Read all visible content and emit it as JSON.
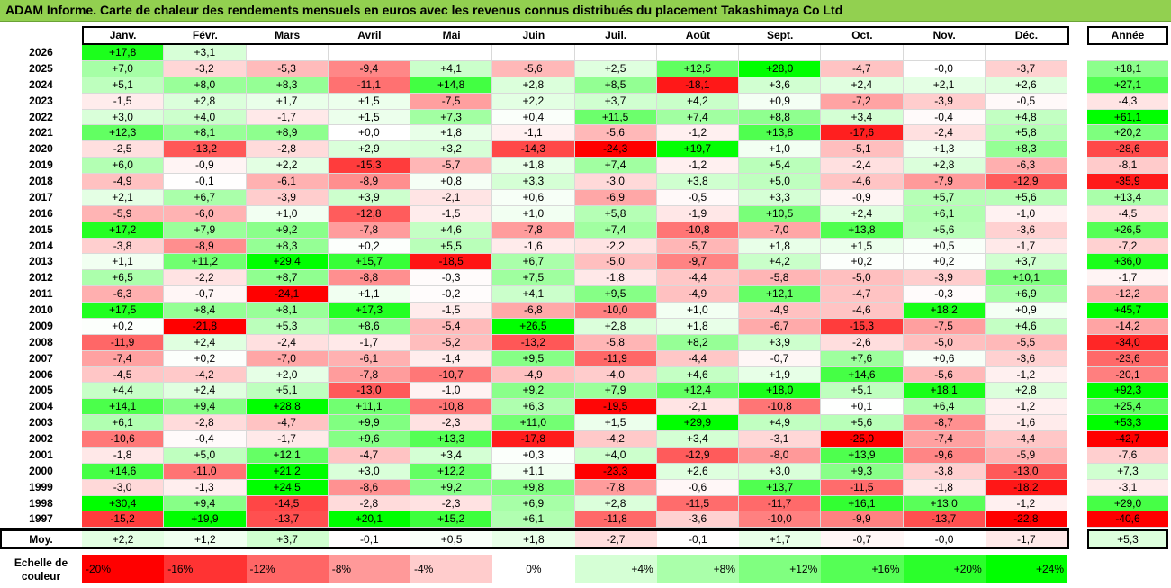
{
  "title": "ADAM Informe. Carte de chaleur des rendements mensuels en euros avec les revenus connus distribués du placement Takashimaya Co Ltd",
  "chart_data": {
    "type": "heatmap",
    "months": [
      "Janv.",
      "Févr.",
      "Mars",
      "Avril",
      "Mai",
      "Juin",
      "Juil.",
      "Août",
      "Sept.",
      "Oct.",
      "Nov.",
      "Déc."
    ],
    "year_label": "Année",
    "rows": [
      {
        "year": "2026",
        "values": [
          "+17,8",
          "+3,1",
          null,
          null,
          null,
          null,
          null,
          null,
          null,
          null,
          null,
          null
        ],
        "annual": null
      },
      {
        "year": "2025",
        "values": [
          "+7,0",
          "-3,2",
          "-5,3",
          "-9,4",
          "+4,1",
          "-5,6",
          "+2,5",
          "+12,5",
          "+28,0",
          "-4,7",
          "-0,0",
          "-3,7"
        ],
        "annual": "+18,1"
      },
      {
        "year": "2024",
        "values": [
          "+5,1",
          "+8,0",
          "+8,3",
          "-11,1",
          "+14,8",
          "+2,8",
          "+8,5",
          "-18,1",
          "+3,6",
          "+2,4",
          "+2,1",
          "+2,6"
        ],
        "annual": "+27,1"
      },
      {
        "year": "2023",
        "values": [
          "-1,5",
          "+2,8",
          "+1,7",
          "+1,5",
          "-7,5",
          "+2,2",
          "+3,7",
          "+4,2",
          "+0,9",
          "-7,2",
          "-3,9",
          "-0,5"
        ],
        "annual": "-4,3"
      },
      {
        "year": "2022",
        "values": [
          "+3,0",
          "+4,0",
          "-1,7",
          "+1,5",
          "+7,3",
          "+0,4",
          "+11,5",
          "+7,4",
          "+8,8",
          "+3,4",
          "-0,4",
          "+4,8"
        ],
        "annual": "+61,1"
      },
      {
        "year": "2021",
        "values": [
          "+12,3",
          "+8,1",
          "+8,9",
          "+0,0",
          "+1,8",
          "-1,1",
          "-5,6",
          "-1,2",
          "+13,8",
          "-17,6",
          "-2,4",
          "+5,8"
        ],
        "annual": "+20,2"
      },
      {
        "year": "2020",
        "values": [
          "-2,5",
          "-13,2",
          "-2,8",
          "+2,9",
          "+3,2",
          "-14,3",
          "-24,3",
          "+19,7",
          "+1,0",
          "-5,1",
          "+1,3",
          "+8,3"
        ],
        "annual": "-28,6"
      },
      {
        "year": "2019",
        "values": [
          "+6,0",
          "-0,9",
          "+2,2",
          "-15,3",
          "-5,7",
          "+1,8",
          "+7,4",
          "-1,2",
          "+5,4",
          "-2,4",
          "+2,8",
          "-6,3"
        ],
        "annual": "-8,1"
      },
      {
        "year": "2018",
        "values": [
          "-4,9",
          "-0,1",
          "-6,1",
          "-8,9",
          "+0,8",
          "+3,3",
          "-3,0",
          "+3,8",
          "+5,0",
          "-4,6",
          "-7,9",
          "-12,9"
        ],
        "annual": "-35,9"
      },
      {
        "year": "2017",
        "values": [
          "+2,1",
          "+6,7",
          "-3,9",
          "+3,9",
          "-2,1",
          "+0,6",
          "-6,9",
          "-0,5",
          "+3,3",
          "-0,9",
          "+5,7",
          "+5,6"
        ],
        "annual": "+13,4"
      },
      {
        "year": "2016",
        "values": [
          "-5,9",
          "-6,0",
          "+1,0",
          "-12,8",
          "-1,5",
          "+1,0",
          "+5,8",
          "-1,9",
          "+10,5",
          "+2,4",
          "+6,1",
          "-1,0"
        ],
        "annual": "-4,5"
      },
      {
        "year": "2015",
        "values": [
          "+17,2",
          "+7,9",
          "+9,2",
          "-7,8",
          "+4,6",
          "-7,8",
          "+7,4",
          "-10,8",
          "-7,0",
          "+13,8",
          "+5,6",
          "-3,6"
        ],
        "annual": "+26,5"
      },
      {
        "year": "2014",
        "values": [
          "-3,8",
          "-8,9",
          "+8,3",
          "+0,2",
          "+5,5",
          "-1,6",
          "-2,2",
          "-5,7",
          "+1,8",
          "+1,5",
          "+0,5",
          "-1,7"
        ],
        "annual": "-7,2"
      },
      {
        "year": "2013",
        "values": [
          "+1,1",
          "+11,2",
          "+29,4",
          "+15,7",
          "-18,5",
          "+6,7",
          "-5,0",
          "-9,7",
          "+4,2",
          "+0,2",
          "+0,2",
          "+3,7"
        ],
        "annual": "+36,0"
      },
      {
        "year": "2012",
        "values": [
          "+6,5",
          "-2,2",
          "+8,7",
          "-8,8",
          "-0,3",
          "+7,5",
          "-1,8",
          "-4,4",
          "-5,8",
          "-5,0",
          "-3,9",
          "+10,1"
        ],
        "annual": "-1,7"
      },
      {
        "year": "2011",
        "values": [
          "-6,3",
          "-0,7",
          "-24,1",
          "+1,1",
          "-0,2",
          "+4,1",
          "+9,5",
          "-4,9",
          "+12,1",
          "-4,7",
          "-0,3",
          "+6,9"
        ],
        "annual": "-12,2"
      },
      {
        "year": "2010",
        "values": [
          "+17,5",
          "+8,4",
          "+8,1",
          "+17,3",
          "-1,5",
          "-6,8",
          "-10,0",
          "+1,0",
          "-4,9",
          "-4,6",
          "+18,2",
          "+0,9"
        ],
        "annual": "+45,7"
      },
      {
        "year": "2009",
        "values": [
          "+0,2",
          "-21,8",
          "+5,3",
          "+8,6",
          "-5,4",
          "+26,5",
          "+2,8",
          "+1,8",
          "-6,7",
          "-15,3",
          "-7,5",
          "+4,6"
        ],
        "annual": "-14,2"
      },
      {
        "year": "2008",
        "values": [
          "-11,9",
          "+2,4",
          "-2,4",
          "-1,7",
          "-5,2",
          "-13,2",
          "-5,8",
          "+8,2",
          "+3,9",
          "-2,6",
          "-5,0",
          "-5,5"
        ],
        "annual": "-34,0"
      },
      {
        "year": "2007",
        "values": [
          "-7,4",
          "+0,2",
          "-7,0",
          "-6,1",
          "-1,4",
          "+9,5",
          "-11,9",
          "-4,4",
          "-0,7",
          "+7,6",
          "+0,6",
          "-3,6"
        ],
        "annual": "-23,6"
      },
      {
        "year": "2006",
        "values": [
          "-4,5",
          "-4,2",
          "+2,0",
          "-7,8",
          "-10,7",
          "-4,9",
          "-4,0",
          "+4,6",
          "+1,9",
          "+14,6",
          "-5,6",
          "-1,2"
        ],
        "annual": "-20,1"
      },
      {
        "year": "2005",
        "values": [
          "+4,4",
          "+2,4",
          "+5,1",
          "-13,0",
          "-1,0",
          "+9,2",
          "+7,9",
          "+12,4",
          "+18,0",
          "+5,1",
          "+18,1",
          "+2,8"
        ],
        "annual": "+92,3"
      },
      {
        "year": "2004",
        "values": [
          "+14,1",
          "+9,4",
          "+28,8",
          "+11,1",
          "-10,8",
          "+6,3",
          "-19,5",
          "-2,1",
          "-10,8",
          "+0,1",
          "+6,4",
          "-1,2"
        ],
        "annual": "+25,4"
      },
      {
        "year": "2003",
        "values": [
          "+6,1",
          "-2,8",
          "-4,7",
          "+9,9",
          "-2,3",
          "+11,0",
          "+1,5",
          "+29,9",
          "+4,9",
          "+5,6",
          "-8,7",
          "-1,6"
        ],
        "annual": "+53,3"
      },
      {
        "year": "2002",
        "values": [
          "-10,6",
          "-0,4",
          "-1,7",
          "+9,6",
          "+13,3",
          "-17,8",
          "-4,2",
          "+3,4",
          "-3,1",
          "-25,0",
          "-7,4",
          "-4,4"
        ],
        "annual": "-42,7"
      },
      {
        "year": "2001",
        "values": [
          "-1,8",
          "+5,0",
          "+12,1",
          "-4,7",
          "+3,4",
          "+0,3",
          "+4,0",
          "-12,9",
          "-8,0",
          "+13,9",
          "-9,6",
          "-5,9"
        ],
        "annual": "-7,6"
      },
      {
        "year": "2000",
        "values": [
          "+14,6",
          "-11,0",
          "+21,2",
          "+3,0",
          "+12,2",
          "+1,1",
          "-23,3",
          "+2,6",
          "+3,0",
          "+9,3",
          "-3,8",
          "-13,0"
        ],
        "annual": "+7,3"
      },
      {
        "year": "1999",
        "values": [
          "-3,0",
          "-1,3",
          "+24,5",
          "-8,6",
          "+9,2",
          "+9,8",
          "-7,8",
          "-0,6",
          "+13,7",
          "-11,5",
          "-1,8",
          "-18,2"
        ],
        "annual": "-3,1"
      },
      {
        "year": "1998",
        "values": [
          "+30,4",
          "+9,4",
          "-14,5",
          "-2,8",
          "-2,3",
          "+6,9",
          "+2,8",
          "-11,5",
          "-11,7",
          "+16,1",
          "+13,0",
          "-1,2"
        ],
        "annual": "+29,0"
      },
      {
        "year": "1997",
        "values": [
          "-15,2",
          "+19,9",
          "-13,7",
          "+20,1",
          "+15,2",
          "+6,1",
          "-11,8",
          "-3,6",
          "-10,0",
          "-9,9",
          "-13,7",
          "-22,8"
        ],
        "annual": "-40,6"
      }
    ],
    "average": {
      "label": "Moy.",
      "values": [
        "+2,2",
        "+1,2",
        "+3,7",
        "-0,1",
        "+0,5",
        "+1,8",
        "-2,7",
        "-0,1",
        "+1,7",
        "-0,7",
        "-0,0",
        "-1,7"
      ],
      "annual": "+5,3"
    },
    "legend": {
      "label_line1": "Echelle de",
      "label_line2": "couleur",
      "steps": [
        {
          "label": "-20%",
          "value": -20,
          "align": "left"
        },
        {
          "label": "-16%",
          "value": -16,
          "align": "left"
        },
        {
          "label": "-12%",
          "value": -12,
          "align": "left"
        },
        {
          "label": "-8%",
          "value": -8,
          "align": "left"
        },
        {
          "label": "-4%",
          "value": -4,
          "align": "left"
        },
        {
          "label": "0%",
          "value": 0,
          "align": "center"
        },
        {
          "label": "+4%",
          "value": 4,
          "align": "right"
        },
        {
          "label": "+8%",
          "value": 8,
          "align": "right"
        },
        {
          "label": "+12%",
          "value": 12,
          "align": "right"
        },
        {
          "label": "+16%",
          "value": 16,
          "align": "right"
        },
        {
          "label": "+20%",
          "value": 20,
          "align": "right"
        },
        {
          "label": "+24%",
          "value": 24,
          "align": "right"
        }
      ]
    },
    "colors": {
      "negative_max": "#ff0000",
      "neutral": "#ffffff",
      "positive_max": "#00ff00"
    }
  }
}
